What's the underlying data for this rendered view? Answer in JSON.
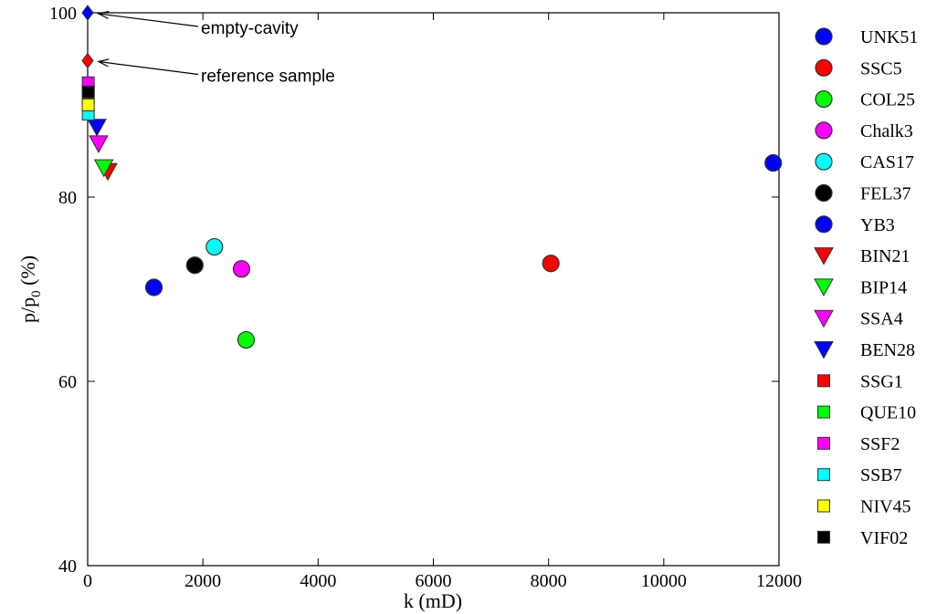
{
  "chart_data": {
    "type": "scatter",
    "xlabel": "k (mD)",
    "ylabel": {
      "base": "p/p",
      "sub": "0",
      "suffix": " (%)"
    },
    "xlim": [
      0,
      12000
    ],
    "ylim": [
      40,
      100
    ],
    "xticks": [
      0,
      2000,
      4000,
      6000,
      8000,
      10000,
      12000
    ],
    "yticks": [
      40,
      60,
      80,
      100
    ],
    "grid": false,
    "legend_position": "right outside",
    "series": [
      {
        "name": "UNK51",
        "marker": "circle",
        "color": "#0000ff",
        "points": [
          {
            "x": 11900,
            "y": 83.7
          }
        ]
      },
      {
        "name": "SSC5",
        "marker": "circle",
        "color": "#ff0000",
        "points": [
          {
            "x": 8040,
            "y": 72.8
          }
        ]
      },
      {
        "name": "COL25",
        "marker": "circle",
        "color": "#00ff00",
        "points": [
          {
            "x": 2750,
            "y": 64.5
          }
        ]
      },
      {
        "name": "Chalk3",
        "marker": "circle",
        "color": "#ff00ff",
        "points": [
          {
            "x": 2670,
            "y": 72.2
          }
        ]
      },
      {
        "name": "CAS17",
        "marker": "circle",
        "color": "#00ffff",
        "points": [
          {
            "x": 2200,
            "y": 74.6
          }
        ]
      },
      {
        "name": "FEL37",
        "marker": "circle",
        "color": "#000000",
        "points": [
          {
            "x": 1860,
            "y": 72.6
          }
        ]
      },
      {
        "name": "YB3",
        "marker": "circle",
        "color": "#0000ff",
        "points": [
          {
            "x": 1150,
            "y": 70.2
          }
        ]
      },
      {
        "name": "BIN21",
        "marker": "triangle-down",
        "color": "#ff0000",
        "points": [
          {
            "x": 350,
            "y": 82.8
          }
        ]
      },
      {
        "name": "BIP14",
        "marker": "triangle-down",
        "color": "#00ff00",
        "points": [
          {
            "x": 280,
            "y": 83.2
          }
        ]
      },
      {
        "name": "SSA4",
        "marker": "triangle-down",
        "color": "#ff00ff",
        "points": [
          {
            "x": 190,
            "y": 85.8
          }
        ]
      },
      {
        "name": "BEN28",
        "marker": "triangle-down",
        "color": "#0000ff",
        "points": [
          {
            "x": 160,
            "y": 87.6
          }
        ]
      },
      {
        "name": "SSG1",
        "marker": "square",
        "color": "#ff0000",
        "points": [
          {
            "x": 10,
            "y": 91.6
          }
        ]
      },
      {
        "name": "QUE10",
        "marker": "square",
        "color": "#00ff00",
        "points": [
          {
            "x": 10,
            "y": 90.8
          }
        ]
      },
      {
        "name": "SSF2",
        "marker": "square",
        "color": "#ff00ff",
        "points": [
          {
            "x": 10,
            "y": 92.4
          }
        ]
      },
      {
        "name": "SSB7",
        "marker": "square",
        "color": "#00ffff",
        "points": [
          {
            "x": 10,
            "y": 89.0
          }
        ]
      },
      {
        "name": "NIV45",
        "marker": "square",
        "color": "#ffff00",
        "points": [
          {
            "x": 10,
            "y": 90.0
          }
        ]
      },
      {
        "name": "VIF02",
        "marker": "square",
        "color": "#000000",
        "points": [
          {
            "x": 10,
            "y": 91.4
          }
        ]
      }
    ],
    "extra_points": [
      {
        "marker": "diamond",
        "color": "#0000ff",
        "x": 0,
        "y": 100
      },
      {
        "marker": "diamond",
        "color": "#ff0000",
        "x": 0,
        "y": 94.8
      }
    ],
    "annotations": [
      {
        "text": "empty-cavity",
        "x": 0,
        "y": 100
      },
      {
        "text": "reference sample",
        "x": 0,
        "y": 94.8
      }
    ]
  }
}
